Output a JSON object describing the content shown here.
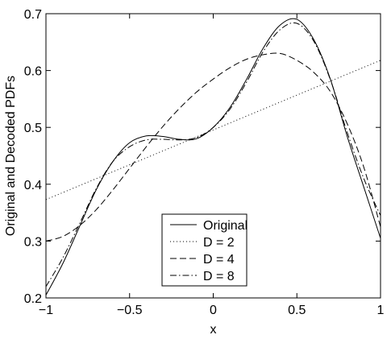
{
  "chart_data": {
    "type": "line",
    "xlabel": "x",
    "ylabel": "Original and Decoded PDFs",
    "xlim": [
      -1,
      1
    ],
    "ylim": [
      0.2,
      0.7
    ],
    "xticks": [
      -1,
      -0.5,
      0,
      0.5,
      1
    ],
    "xtick_labels": [
      "−1",
      "−0.5",
      "0",
      "0.5",
      "1"
    ],
    "yticks": [
      0.2,
      0.3,
      0.4,
      0.5,
      0.6,
      0.7
    ],
    "ytick_labels": [
      "0.2",
      "0.3",
      "0.4",
      "0.5",
      "0.6",
      "0.7"
    ],
    "grid": false,
    "legend_position": "bottom-center",
    "series": [
      {
        "name": "Original",
        "style": "solid",
        "x": [
          -1.0,
          -0.9,
          -0.8,
          -0.7,
          -0.6,
          -0.5,
          -0.4,
          -0.3,
          -0.2,
          -0.1,
          0.0,
          0.1,
          0.2,
          0.3,
          0.4,
          0.5,
          0.6,
          0.7,
          0.8,
          0.9,
          1.0
        ],
        "y": [
          0.205,
          0.26,
          0.325,
          0.39,
          0.44,
          0.473,
          0.485,
          0.484,
          0.479,
          0.48,
          0.5,
          0.535,
          0.585,
          0.64,
          0.68,
          0.69,
          0.655,
          0.585,
          0.485,
          0.395,
          0.305
        ]
      },
      {
        "name": "D = 2",
        "style": "dotted",
        "x": [
          -1.0,
          1.0
        ],
        "y": [
          0.373,
          0.618
        ]
      },
      {
        "name": "D = 4",
        "style": "dashed",
        "x": [
          -1.0,
          -0.9,
          -0.8,
          -0.7,
          -0.6,
          -0.5,
          -0.4,
          -0.3,
          -0.2,
          -0.1,
          0.0,
          0.1,
          0.2,
          0.3,
          0.4,
          0.5,
          0.6,
          0.7,
          0.8,
          0.9,
          1.0
        ],
        "y": [
          0.3,
          0.308,
          0.327,
          0.355,
          0.39,
          0.428,
          0.466,
          0.502,
          0.534,
          0.562,
          0.585,
          0.605,
          0.62,
          0.628,
          0.63,
          0.618,
          0.597,
          0.563,
          0.507,
          0.43,
          0.325
        ]
      },
      {
        "name": "D = 8",
        "style": "dashdot",
        "x": [
          -1.0,
          -0.9,
          -0.8,
          -0.7,
          -0.6,
          -0.5,
          -0.4,
          -0.3,
          -0.2,
          -0.1,
          0.0,
          0.1,
          0.2,
          0.3,
          0.4,
          0.5,
          0.6,
          0.7,
          0.8,
          0.9,
          1.0
        ],
        "y": [
          0.22,
          0.27,
          0.33,
          0.392,
          0.44,
          0.466,
          0.478,
          0.479,
          0.478,
          0.482,
          0.5,
          0.532,
          0.58,
          0.634,
          0.672,
          0.683,
          0.652,
          0.584,
          0.492,
          0.41,
          0.345
        ]
      }
    ]
  }
}
